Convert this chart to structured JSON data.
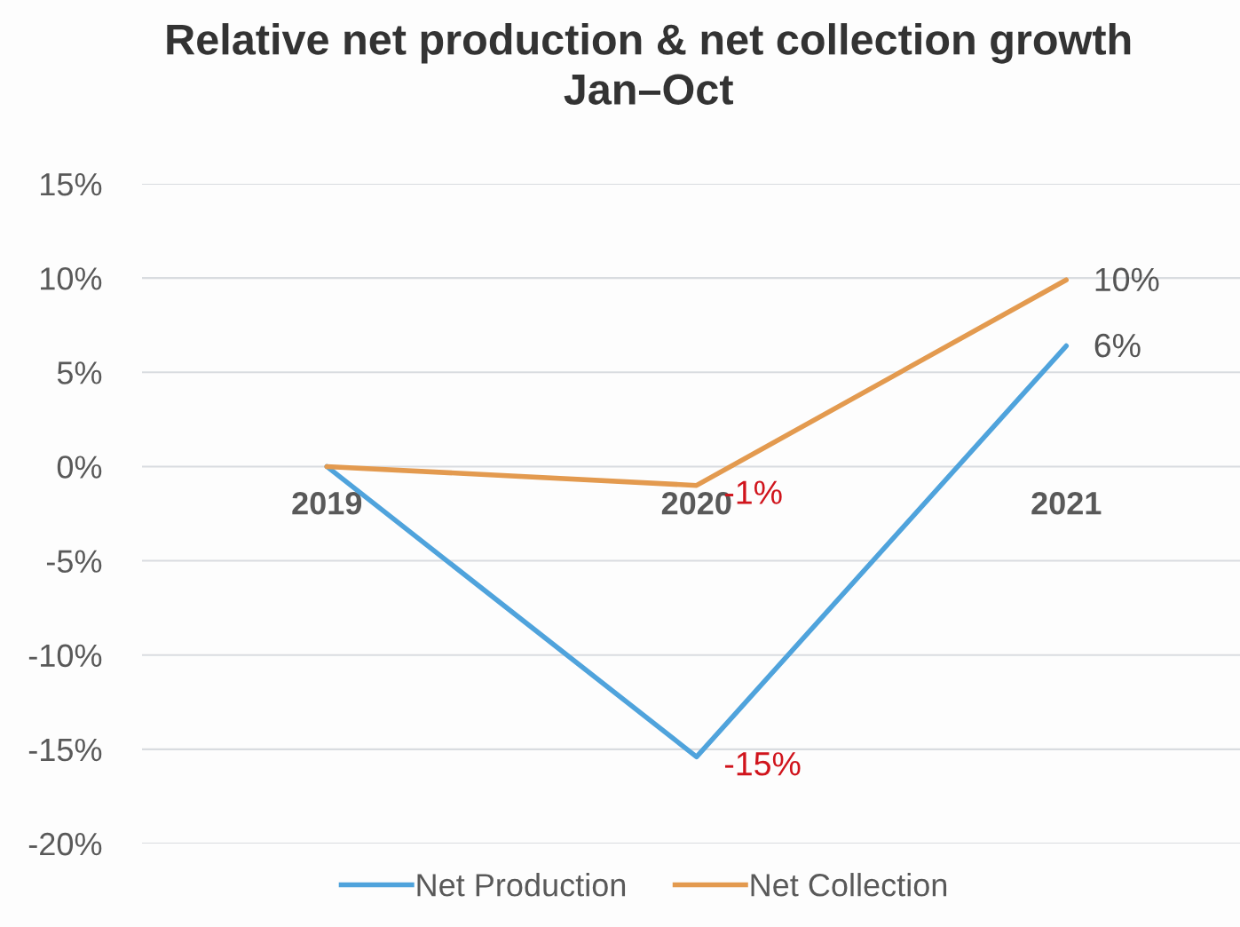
{
  "chart_data": {
    "type": "line",
    "title": "Relative net production & net collection growth\nJan–Oct",
    "categories": [
      "2019",
      "2020",
      "2021"
    ],
    "series": [
      {
        "name": "Net Production",
        "color": "#4fa3dc",
        "values": [
          0,
          -15.4,
          6.4
        ],
        "value_labels": [
          null,
          "-15%",
          "6%"
        ]
      },
      {
        "name": "Net Collection",
        "color": "#e39a4f",
        "values": [
          0,
          -1,
          9.9
        ],
        "value_labels": [
          null,
          "-1%",
          "10%"
        ]
      }
    ],
    "ylim": [
      -20,
      15
    ],
    "yticks": [
      {
        "value": -20,
        "label": "-20%"
      },
      {
        "value": -15,
        "label": "-15%"
      },
      {
        "value": -10,
        "label": "-10%"
      },
      {
        "value": -5,
        "label": "-5%"
      },
      {
        "value": 0,
        "label": "0%"
      },
      {
        "value": 5,
        "label": "5%"
      },
      {
        "value": 10,
        "label": "10%"
      },
      {
        "value": 15,
        "label": "15%"
      }
    ],
    "grid": "y",
    "legend": "bottom",
    "marker": "none",
    "line_style": "solid"
  }
}
